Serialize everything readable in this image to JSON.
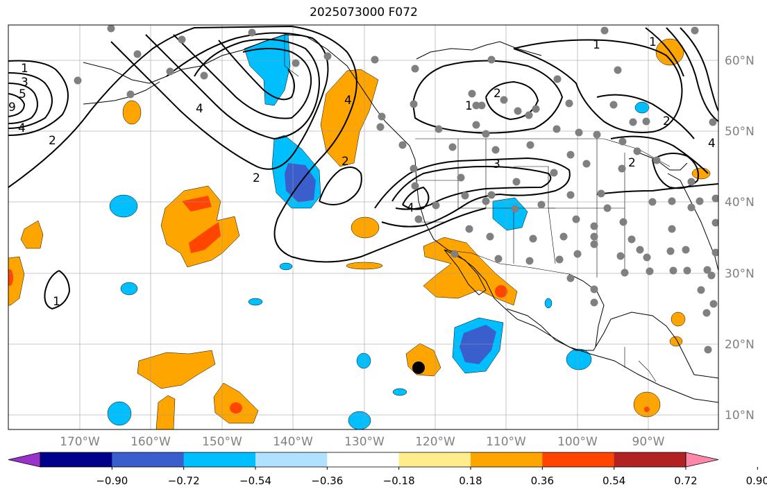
{
  "title": "2025073000 F072",
  "longitude_labels": [
    "170°W",
    "160°W",
    "150°W",
    "140°W",
    "130°W",
    "120°W",
    "110°W",
    "100°W",
    "90°W"
  ],
  "latitude_labels": [
    "60°N",
    "50°N",
    "40°N",
    "30°N",
    "20°N",
    "10°N"
  ],
  "colorbar": {
    "tick_labels": [
      "−0.90",
      "−0.72",
      "−0.54",
      "−0.36",
      "−0.18",
      "0.18",
      "0.36",
      "0.54",
      "0.72",
      "0.90"
    ],
    "colors": [
      "#9932cc",
      "#00008b",
      "#3a5fcd",
      "#00bfff",
      "#b0e2ff",
      "#ffffff",
      "#ffec8b",
      "#ffa500",
      "#ff4500",
      "#b22222",
      "#ff88aa"
    ]
  },
  "contour_labels": [
    "1",
    "3",
    "5",
    "9",
    "4",
    "2",
    "4",
    "2",
    "4",
    "1",
    "2",
    "3",
    "4",
    "2",
    "1",
    "1",
    "2",
    "2",
    "1",
    "4"
  ],
  "colors": {
    "positive_orange": "#ffa500",
    "positive_red": "#ff4500",
    "negative_blue": "#00bfff",
    "negative_dark_blue": "#3a5fcd",
    "station_gray": "#808080",
    "contour": "#000000"
  },
  "marker": "black-dot"
}
